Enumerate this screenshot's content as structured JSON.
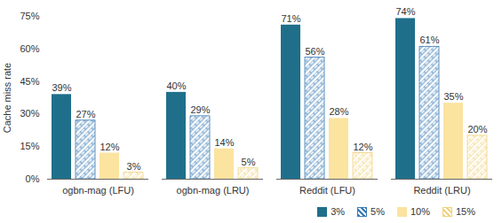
{
  "chart_data": {
    "type": "bar",
    "categories": [
      "ogbn-mag (LFU)",
      "ogbn-mag (LRU)",
      "Reddit (LFU)",
      "Reddit (LRU)"
    ],
    "series": [
      {
        "name": "3%",
        "color": "#1f6f8b",
        "values": [
          39,
          40,
          71,
          74
        ],
        "value_labels": [
          "39%",
          "40%",
          "71%",
          "74%"
        ]
      },
      {
        "name": "5%",
        "color": "#3a7bb5",
        "values": [
          27,
          29,
          56,
          61
        ],
        "value_labels": [
          "27%",
          "29%",
          "56%",
          "61%"
        ]
      },
      {
        "name": "10%",
        "color": "#fbe3a0",
        "values": [
          12,
          14,
          28,
          35
        ],
        "value_labels": [
          "12%",
          "14%",
          "28%",
          "35%"
        ]
      },
      {
        "name": "15%",
        "color": "#f0d27e",
        "values": [
          3,
          5,
          12,
          20
        ],
        "value_labels": [
          "3%",
          "5%",
          "12%",
          "20%"
        ]
      }
    ],
    "y_label": "Cache miss rate",
    "ylim": [
      0,
      75
    ],
    "yticks": [
      {
        "value": 0,
        "label": "0%"
      },
      {
        "value": 15,
        "label": "15%"
      },
      {
        "value": 30,
        "label": "30%"
      },
      {
        "value": 45,
        "label": "45%"
      },
      {
        "value": 60,
        "label": "60%"
      },
      {
        "value": 75,
        "label": "75%"
      }
    ],
    "grid": false,
    "data_labels": true,
    "legend": "bottom"
  }
}
